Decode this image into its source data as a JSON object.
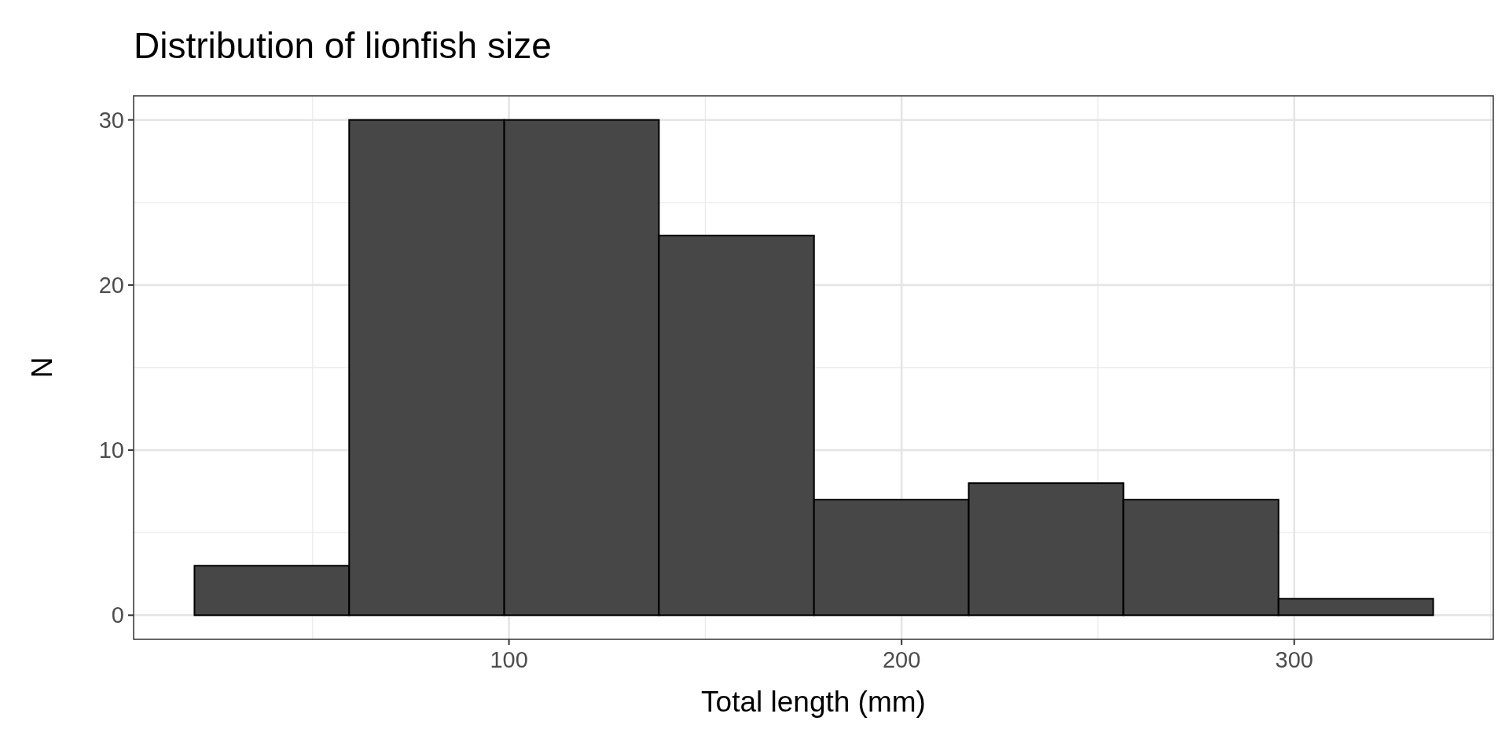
{
  "chart_data": {
    "type": "histogram",
    "title": "Distribution of lionfish size",
    "xlabel": "Total length (mm)",
    "ylabel": "N",
    "bins": [
      19.9,
      59.3,
      98.8,
      138.2,
      177.7,
      217.1,
      256.5,
      296.0,
      335.4
    ],
    "values": [
      3,
      30,
      30,
      23,
      7,
      8,
      7,
      1
    ],
    "color": "#474747",
    "xlim": [
      4.4,
      350.7
    ],
    "ylim": [
      -1.46,
      31.46
    ],
    "xticks": [
      100,
      200,
      300
    ],
    "yticks": [
      0,
      10,
      20,
      30
    ],
    "grid": true
  }
}
